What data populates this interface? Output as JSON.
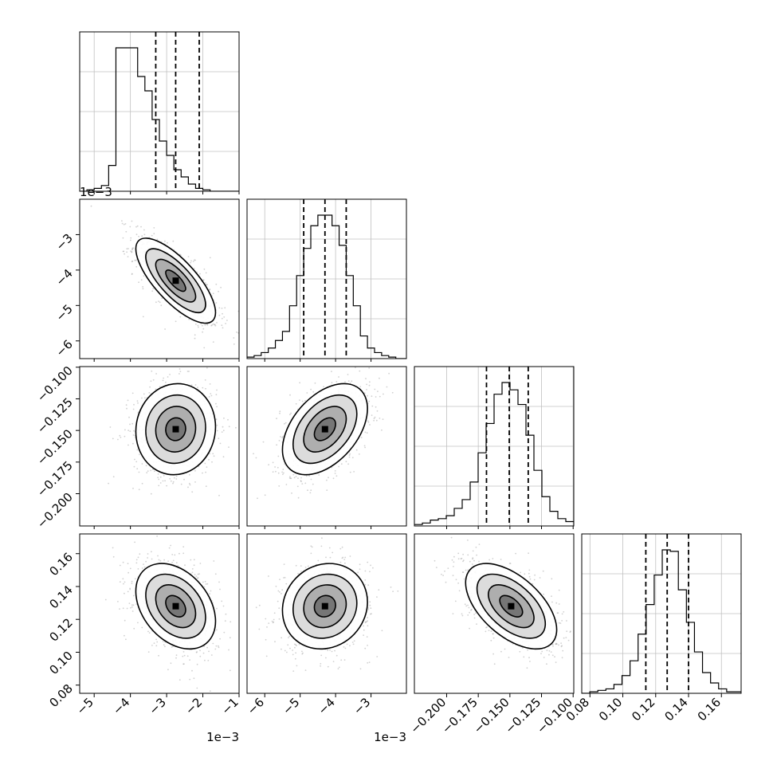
{
  "chart_data": {
    "type": "corner",
    "params": [
      {
        "range": [
          -5.4,
          -1.0
        ],
        "ticks": [
          -5,
          -4,
          -3,
          -2,
          -1
        ],
        "tick_labels": [
          "−5",
          "−4",
          "−3",
          "−2",
          "−1"
        ],
        "offset_label": "1e−3",
        "quantiles": [
          -3.3,
          -2.75,
          -2.1
        ],
        "hist_bins_start": -5.4,
        "hist_bin_width": 0.2,
        "hist_counts": [
          0,
          1,
          2,
          4,
          18,
          100,
          100,
          100,
          80,
          70,
          50,
          35,
          25,
          15,
          10,
          5,
          2,
          1,
          0,
          0,
          0,
          0
        ],
        "hist_counts_note": ""
      },
      {
        "range": [
          -6.5,
          -2.0
        ],
        "ticks": [
          -6,
          -5,
          -4,
          -3
        ],
        "tick_labels": [
          "−6",
          "−5",
          "−4",
          "−3"
        ],
        "offset_label": "1e−3",
        "quantiles": [
          -4.9,
          -4.3,
          -3.7
        ],
        "hist_bins_start": -6.5,
        "hist_bin_width": 0.2,
        "hist_counts": [
          1,
          2,
          4,
          7,
          12,
          18,
          35,
          55,
          73,
          88,
          95,
          95,
          88,
          75,
          55,
          35,
          15,
          7,
          4,
          2,
          1,
          0,
          0
        ],
        "hist_counts_note": ""
      },
      {
        "range": [
          -0.2255,
          -0.0995
        ],
        "ticks": [
          -0.2,
          -0.175,
          -0.15,
          -0.125,
          -0.1
        ],
        "tick_labels": [
          "−0.200",
          "−0.175",
          "−0.150",
          "−0.125",
          "−0.100"
        ],
        "offset_label": "",
        "quantiles": [
          -0.1685,
          -0.1505,
          -0.1355
        ],
        "hist_bins_start": -0.2255,
        "hist_bin_width": 0.0063,
        "hist_counts": [
          1,
          2,
          4,
          5,
          7,
          12,
          18,
          30,
          50,
          70,
          90,
          98,
          93,
          83,
          62,
          38,
          20,
          10,
          5,
          3
        ],
        "hist_counts_note": ""
      },
      {
        "range": [
          0.075,
          0.172
        ],
        "ticks": [
          0.08,
          0.1,
          0.12,
          0.14,
          0.16
        ],
        "tick_labels": [
          "0.08",
          "0.10",
          "0.12",
          "0.14",
          "0.16"
        ],
        "offset_label": "",
        "quantiles": [
          0.114,
          0.127,
          0.14
        ],
        "hist_bins_start": 0.075,
        "hist_bin_width": 0.0049,
        "hist_counts": [
          0,
          1,
          2,
          3,
          6,
          12,
          22,
          40,
          60,
          80,
          97,
          96,
          70,
          48,
          28,
          14,
          7,
          3,
          1,
          1
        ],
        "hist_counts_note": ""
      }
    ],
    "pairs": [
      {
        "row": 1,
        "col": 0,
        "mean": [
          -2.75,
          -4.3
        ],
        "sd": [
          0.55,
          0.6
        ],
        "rho": -0.75
      },
      {
        "row": 2,
        "col": 0,
        "mean": [
          -2.75,
          -0.149
        ],
        "sd": [
          0.55,
          0.018
        ],
        "rho": 0.05
      },
      {
        "row": 2,
        "col": 1,
        "mean": [
          -4.3,
          -0.149
        ],
        "sd": [
          0.6,
          0.018
        ],
        "rho": 0.45
      },
      {
        "row": 3,
        "col": 0,
        "mean": [
          -2.75,
          0.128
        ],
        "sd": [
          0.55,
          0.013
        ],
        "rho": -0.35
      },
      {
        "row": 3,
        "col": 1,
        "mean": [
          -4.3,
          0.128
        ],
        "sd": [
          0.6,
          0.013
        ],
        "rho": 0.1
      },
      {
        "row": 3,
        "col": 2,
        "mean": [
          -0.149,
          0.128
        ],
        "sd": [
          0.018,
          0.013
        ],
        "rho": -0.55
      }
    ],
    "contour_levels_sigma": [
      0.5,
      1.0,
      1.5,
      2.0
    ],
    "grid": true
  }
}
